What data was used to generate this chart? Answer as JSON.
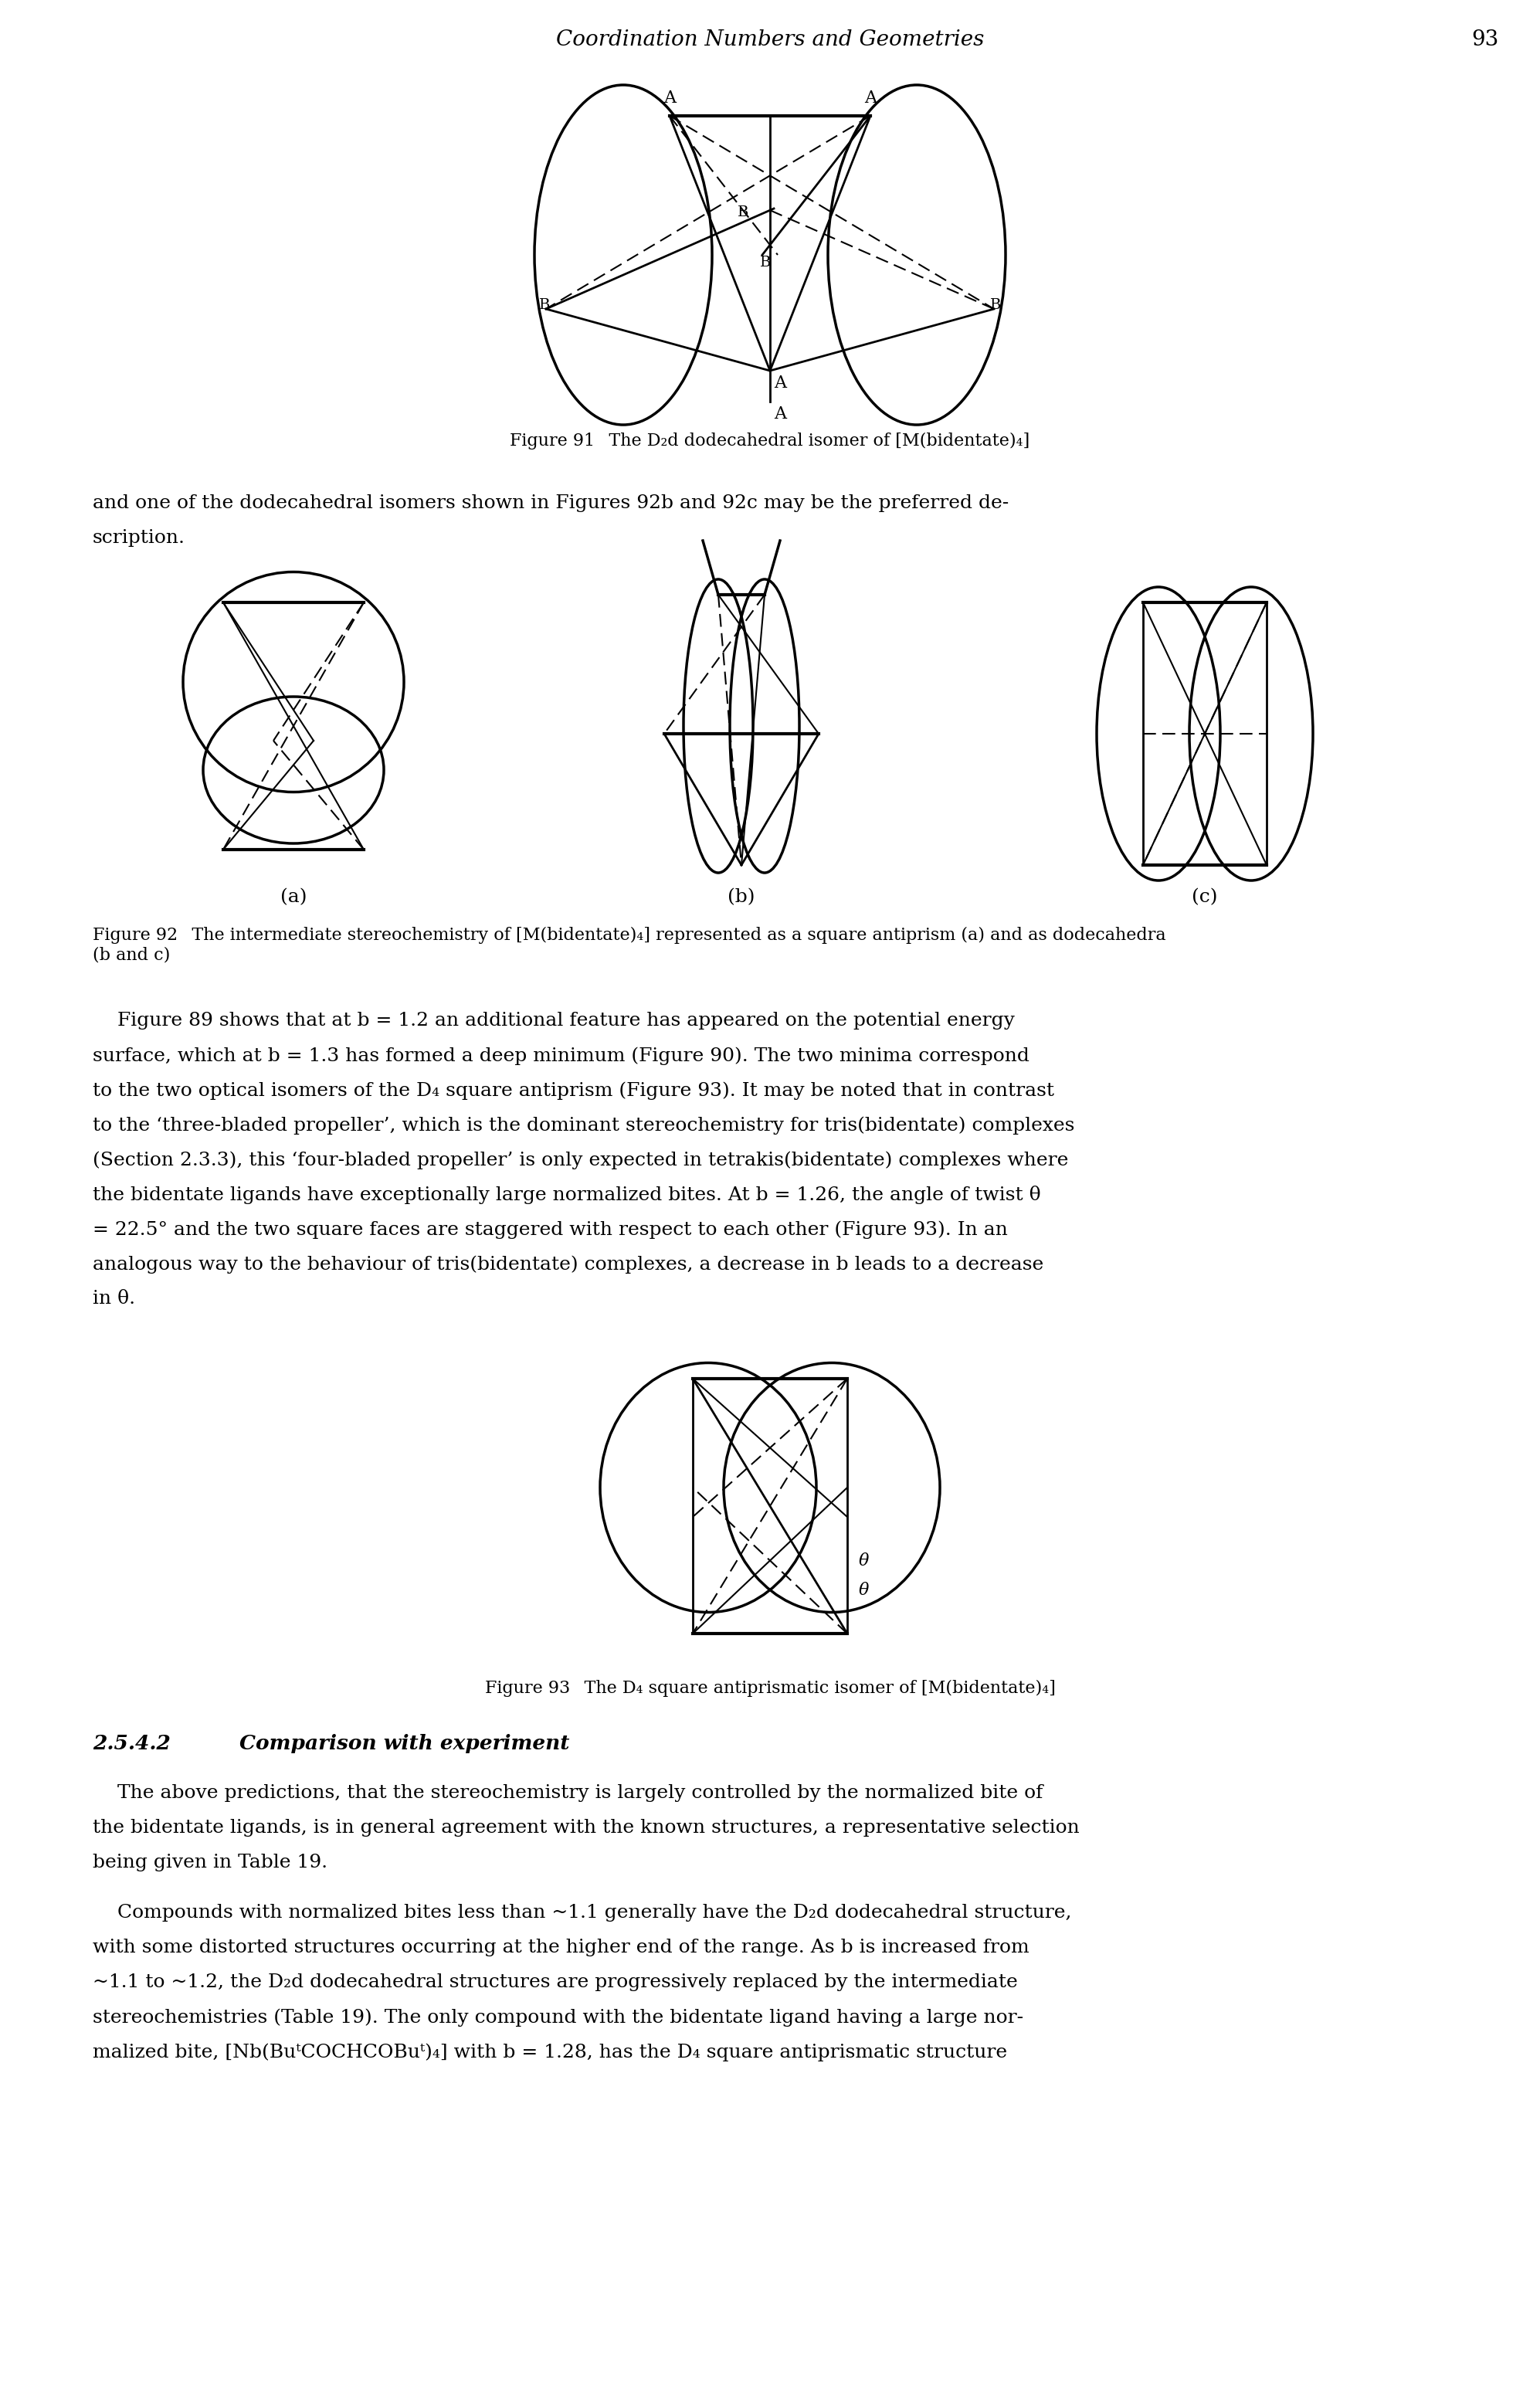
{
  "header_title": "Coordination Numbers and Geometries",
  "header_page": "93",
  "fig91_caption": "Figure 91  The D₂d dodecahedral isomer of [M(bidentate)₄]",
  "fig92_caption": "Figure 92  The intermediate stereochemistry of [M(bidentate)₄] represented as a square antiprism (a) and as dodecahedra\n(b and c)",
  "fig93_caption": "Figure 93  The D₄ square antiprismatic isomer of [M(bidentate)₄]",
  "section_head": "2.5.4.2  Comparison with experiment",
  "para1": "and one of the dodecahedral isomers shown in Figures 92b and 92c may be the preferred de-\nscription.",
  "para2": "    Figure 89 shows that at b = 1.2 an additional feature has appeared on the potential energy\nsurface, which at b = 1.3 has formed a deep minimum (Figure 90). The two minima correspond\nto the two optical isomers of the D₄ square antiprism (Figure 93). It may be noted that in contrast\nto the ‘three-bladed propeller’, which is the dominant stereochemistry for tris(bidentate) complexes\n(Section 2.3.3), this ‘four-bladed propeller’ is only expected in tetrakis(bidentate) complexes where\nthe bidentate ligands have exceptionally large normalized bites. At b = 1.26, the angle of twist θ\n= 22.5° and the two square faces are staggered with respect to each other (Figure 93). In an\nanalogous way to the behaviour of tris(bidentate) complexes, a decrease in b leads to a decrease\nin θ.",
  "para3": "    The above predictions, that the stereochemistry is largely controlled by the normalized bite of\nthe bidentate ligands, is in general agreement with the known structures, a representative selection\nbeing given in Table 19.",
  "para4": "    Compounds with normalized bites less than ~1.1 generally have the D₂d dodecahedral structure,\nwith some distorted structures occurring at the higher end of the range. As b is increased from\n~1.1 to ~1.2, the D₂d dodecahedral structures are progressively replaced by the intermediate\nstereochemistries (Table 19). The only compound with the bidentate ligand having a large nor-\nmalized bite, [Nb(BuᵗCOCHCOBuᵗ)₄] with b = 1.28, has the D₄ square antiprismatic structure"
}
